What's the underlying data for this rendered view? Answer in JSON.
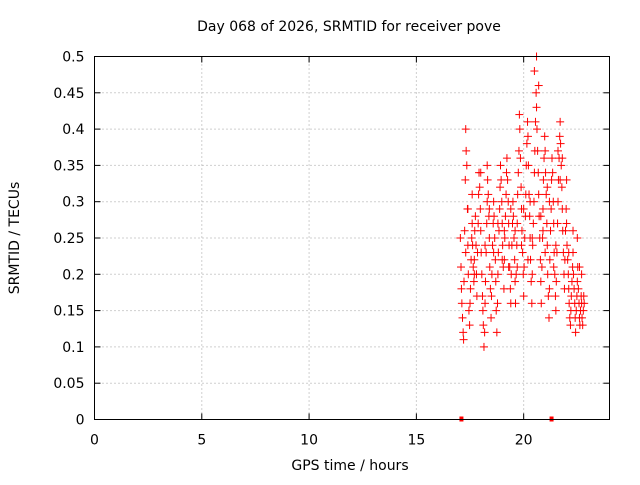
{
  "chart_data": {
    "type": "scatter",
    "title": "Day 068 of 2026, SRMTID for receiver pove",
    "xlabel": "GPS time / hours",
    "ylabel": "SRMTID / TECUs",
    "xlim": [
      0,
      24
    ],
    "ylim": [
      0,
      0.5
    ],
    "xticks": [
      0,
      5,
      10,
      15,
      20
    ],
    "xtick_labels": [
      "0",
      "5",
      "10",
      "15",
      "20"
    ],
    "yticks": [
      0,
      0.05,
      0.1,
      0.15,
      0.2,
      0.25,
      0.3,
      0.35,
      0.4,
      0.45,
      0.5
    ],
    "ytick_labels": [
      "0",
      "0.05",
      "0.1",
      "0.15",
      "0.2",
      "0.25",
      "0.3",
      "0.35",
      "0.4",
      "0.45",
      "0.5"
    ],
    "grid": true,
    "marker": "plus",
    "marker_color": "#ff0000",
    "zero_markers": [
      {
        "x": 17.1,
        "y": 0
      },
      {
        "x": 21.3,
        "y": 0
      }
    ],
    "series": [
      {
        "name": "SRMTID",
        "points": [
          [
            17.05,
            0.25
          ],
          [
            17.08,
            0.21
          ],
          [
            17.1,
            0.18
          ],
          [
            17.12,
            0.16
          ],
          [
            17.15,
            0.14
          ],
          [
            17.18,
            0.12
          ],
          [
            17.2,
            0.11
          ],
          [
            17.22,
            0.19
          ],
          [
            17.25,
            0.26
          ],
          [
            17.28,
            0.33
          ],
          [
            17.3,
            0.4
          ],
          [
            17.32,
            0.37
          ],
          [
            17.35,
            0.35
          ],
          [
            17.38,
            0.29
          ],
          [
            17.4,
            0.24
          ],
          [
            17.42,
            0.2
          ],
          [
            17.45,
            0.15
          ],
          [
            17.48,
            0.13
          ],
          [
            17.5,
            0.16
          ],
          [
            17.52,
            0.18
          ],
          [
            17.55,
            0.22
          ],
          [
            17.58,
            0.25
          ],
          [
            17.6,
            0.27
          ],
          [
            17.62,
            0.24
          ],
          [
            17.65,
            0.21
          ],
          [
            17.68,
            0.19
          ],
          [
            17.7,
            0.22
          ],
          [
            17.72,
            0.26
          ],
          [
            17.75,
            0.28
          ],
          [
            17.78,
            0.24
          ],
          [
            17.8,
            0.2
          ],
          [
            17.82,
            0.17
          ],
          [
            17.85,
            0.23
          ],
          [
            17.88,
            0.27
          ],
          [
            17.9,
            0.31
          ],
          [
            17.92,
            0.34
          ],
          [
            17.95,
            0.32
          ],
          [
            17.98,
            0.29
          ],
          [
            18.0,
            0.26
          ],
          [
            18.02,
            0.23
          ],
          [
            18.05,
            0.2
          ],
          [
            18.08,
            0.17
          ],
          [
            18.1,
            0.15
          ],
          [
            18.12,
            0.13
          ],
          [
            18.15,
            0.1
          ],
          [
            18.18,
            0.12
          ],
          [
            18.2,
            0.16
          ],
          [
            18.22,
            0.19
          ],
          [
            18.25,
            0.23
          ],
          [
            18.28,
            0.27
          ],
          [
            18.3,
            0.3
          ],
          [
            18.32,
            0.33
          ],
          [
            18.35,
            0.31
          ],
          [
            18.38,
            0.28
          ],
          [
            18.4,
            0.25
          ],
          [
            18.42,
            0.21
          ],
          [
            18.45,
            0.18
          ],
          [
            18.48,
            0.14
          ],
          [
            18.5,
            0.17
          ],
          [
            18.52,
            0.2
          ],
          [
            18.55,
            0.24
          ],
          [
            18.58,
            0.27
          ],
          [
            18.6,
            0.3
          ],
          [
            18.62,
            0.28
          ],
          [
            18.65,
            0.25
          ],
          [
            18.68,
            0.22
          ],
          [
            18.7,
            0.19
          ],
          [
            18.72,
            0.15
          ],
          [
            18.75,
            0.12
          ],
          [
            18.78,
            0.16
          ],
          [
            18.8,
            0.2
          ],
          [
            18.82,
            0.23
          ],
          [
            18.85,
            0.26
          ],
          [
            18.88,
            0.29
          ],
          [
            18.9,
            0.32
          ],
          [
            18.92,
            0.35
          ],
          [
            18.95,
            0.33
          ],
          [
            18.98,
            0.3
          ],
          [
            19.0,
            0.27
          ],
          [
            19.02,
            0.24
          ],
          [
            19.05,
            0.21
          ],
          [
            19.08,
            0.18
          ],
          [
            19.1,
            0.22
          ],
          [
            19.12,
            0.25
          ],
          [
            19.15,
            0.28
          ],
          [
            19.18,
            0.31
          ],
          [
            19.2,
            0.34
          ],
          [
            19.22,
            0.36
          ],
          [
            19.25,
            0.33
          ],
          [
            19.28,
            0.3
          ],
          [
            19.3,
            0.27
          ],
          [
            19.32,
            0.24
          ],
          [
            19.35,
            0.21
          ],
          [
            19.38,
            0.18
          ],
          [
            19.4,
            0.16
          ],
          [
            19.42,
            0.2
          ],
          [
            19.45,
            0.24
          ],
          [
            19.48,
            0.27
          ],
          [
            19.5,
            0.3
          ],
          [
            19.52,
            0.28
          ],
          [
            19.55,
            0.25
          ],
          [
            19.58,
            0.22
          ],
          [
            19.6,
            0.19
          ],
          [
            19.62,
            0.16
          ],
          [
            19.65,
            0.2
          ],
          [
            19.68,
            0.24
          ],
          [
            19.7,
            0.27
          ],
          [
            19.72,
            0.31
          ],
          [
            19.75,
            0.34
          ],
          [
            19.78,
            0.37
          ],
          [
            19.8,
            0.42
          ],
          [
            19.82,
            0.4
          ],
          [
            19.85,
            0.36
          ],
          [
            19.88,
            0.32
          ],
          [
            19.9,
            0.29
          ],
          [
            19.92,
            0.26
          ],
          [
            19.95,
            0.23
          ],
          [
            19.98,
            0.2
          ],
          [
            20.0,
            0.17
          ],
          [
            20.02,
            0.21
          ],
          [
            20.05,
            0.25
          ],
          [
            20.08,
            0.28
          ],
          [
            20.1,
            0.31
          ],
          [
            20.12,
            0.35
          ],
          [
            20.15,
            0.38
          ],
          [
            20.18,
            0.41
          ],
          [
            20.2,
            0.39
          ],
          [
            20.22,
            0.35
          ],
          [
            20.25,
            0.31
          ],
          [
            20.28,
            0.28
          ],
          [
            20.3,
            0.25
          ],
          [
            20.32,
            0.22
          ],
          [
            20.35,
            0.19
          ],
          [
            20.38,
            0.16
          ],
          [
            20.4,
            0.2
          ],
          [
            20.42,
            0.24
          ],
          [
            20.45,
            0.27
          ],
          [
            20.48,
            0.3
          ],
          [
            20.5,
            0.34
          ],
          [
            20.52,
            0.37
          ],
          [
            20.55,
            0.41
          ],
          [
            20.58,
            0.45
          ],
          [
            20.6,
            0.43
          ],
          [
            20.62,
            0.4
          ],
          [
            20.65,
            0.37
          ],
          [
            20.68,
            0.34
          ],
          [
            20.7,
            0.31
          ],
          [
            20.72,
            0.28
          ],
          [
            20.75,
            0.25
          ],
          [
            20.78,
            0.22
          ],
          [
            20.8,
            0.19
          ],
          [
            20.82,
            0.16
          ],
          [
            20.85,
            0.21
          ],
          [
            20.88,
            0.25
          ],
          [
            20.9,
            0.29
          ],
          [
            20.92,
            0.33
          ],
          [
            20.95,
            0.36
          ],
          [
            20.98,
            0.39
          ],
          [
            21.0,
            0.37
          ],
          [
            21.02,
            0.34
          ],
          [
            21.05,
            0.31
          ],
          [
            21.08,
            0.27
          ],
          [
            21.1,
            0.24
          ],
          [
            21.12,
            0.2
          ],
          [
            21.15,
            0.17
          ],
          [
            21.18,
            0.14
          ],
          [
            21.2,
            0.18
          ],
          [
            21.22,
            0.22
          ],
          [
            21.25,
            0.26
          ],
          [
            21.28,
            0.29
          ],
          [
            21.3,
            0.33
          ],
          [
            21.32,
            0.36
          ],
          [
            21.35,
            0.34
          ],
          [
            21.38,
            0.3
          ],
          [
            21.4,
            0.27
          ],
          [
            21.42,
            0.23
          ],
          [
            21.45,
            0.2
          ],
          [
            21.48,
            0.17
          ],
          [
            21.5,
            0.15
          ],
          [
            21.52,
            0.19
          ],
          [
            21.55,
            0.23
          ],
          [
            21.58,
            0.27
          ],
          [
            21.6,
            0.3
          ],
          [
            21.62,
            0.33
          ],
          [
            21.65,
            0.36
          ],
          [
            21.68,
            0.39
          ],
          [
            21.7,
            0.41
          ],
          [
            21.72,
            0.38
          ],
          [
            21.75,
            0.35
          ],
          [
            21.78,
            0.32
          ],
          [
            21.8,
            0.29
          ],
          [
            21.82,
            0.26
          ],
          [
            21.85,
            0.23
          ],
          [
            21.88,
            0.2
          ],
          [
            21.9,
            0.18
          ],
          [
            21.92,
            0.22
          ],
          [
            21.95,
            0.26
          ],
          [
            21.98,
            0.29
          ],
          [
            22.0,
            0.27
          ],
          [
            22.02,
            0.24
          ],
          [
            22.05,
            0.22
          ],
          [
            22.08,
            0.2
          ],
          [
            22.1,
            0.18
          ],
          [
            22.12,
            0.16
          ],
          [
            22.15,
            0.14
          ],
          [
            22.18,
            0.13
          ],
          [
            22.2,
            0.15
          ],
          [
            22.22,
            0.17
          ],
          [
            22.25,
            0.19
          ],
          [
            22.28,
            0.21
          ],
          [
            22.3,
            0.23
          ],
          [
            22.32,
            0.2
          ],
          [
            22.35,
            0.18
          ],
          [
            22.38,
            0.16
          ],
          [
            22.4,
            0.14
          ],
          [
            22.42,
            0.12
          ],
          [
            22.45,
            0.15
          ],
          [
            22.48,
            0.17
          ],
          [
            22.5,
            0.19
          ],
          [
            22.52,
            0.21
          ],
          [
            22.55,
            0.18
          ],
          [
            22.58,
            0.16
          ],
          [
            22.6,
            0.14
          ],
          [
            22.62,
            0.13
          ],
          [
            22.65,
            0.15
          ],
          [
            22.68,
            0.17
          ],
          [
            22.7,
            0.16
          ],
          [
            22.72,
            0.14
          ],
          [
            22.75,
            0.13
          ],
          [
            22.78,
            0.15
          ],
          [
            22.8,
            0.17
          ],
          [
            22.82,
            0.16
          ],
          [
            17.4,
            0.29
          ],
          [
            17.6,
            0.31
          ],
          [
            18.0,
            0.34
          ],
          [
            18.3,
            0.35
          ],
          [
            18.6,
            0.23
          ],
          [
            19.0,
            0.22
          ],
          [
            19.3,
            0.21
          ],
          [
            19.6,
            0.26
          ],
          [
            20.0,
            0.29
          ],
          [
            20.3,
            0.3
          ],
          [
            20.5,
            0.48
          ],
          [
            20.6,
            0.5
          ],
          [
            20.7,
            0.46
          ],
          [
            20.9,
            0.26
          ],
          [
            21.1,
            0.32
          ],
          [
            21.4,
            0.21
          ],
          [
            21.6,
            0.37
          ],
          [
            21.8,
            0.36
          ],
          [
            22.0,
            0.33
          ],
          [
            22.3,
            0.26
          ],
          [
            22.6,
            0.21
          ],
          [
            18.2,
            0.24
          ],
          [
            18.8,
            0.27
          ],
          [
            19.4,
            0.29
          ],
          [
            19.9,
            0.24
          ],
          [
            20.2,
            0.22
          ],
          [
            20.8,
            0.28
          ],
          [
            21.2,
            0.3
          ],
          [
            21.7,
            0.33
          ],
          [
            22.1,
            0.23
          ],
          [
            22.5,
            0.25
          ],
          [
            22.7,
            0.2
          ],
          [
            17.3,
            0.23
          ],
          [
            17.7,
            0.2
          ],
          [
            18.4,
            0.29
          ],
          [
            19.1,
            0.26
          ],
          [
            19.7,
            0.21
          ],
          [
            20.4,
            0.25
          ],
          [
            21.0,
            0.23
          ],
          [
            21.5,
            0.24
          ]
        ]
      }
    ]
  }
}
